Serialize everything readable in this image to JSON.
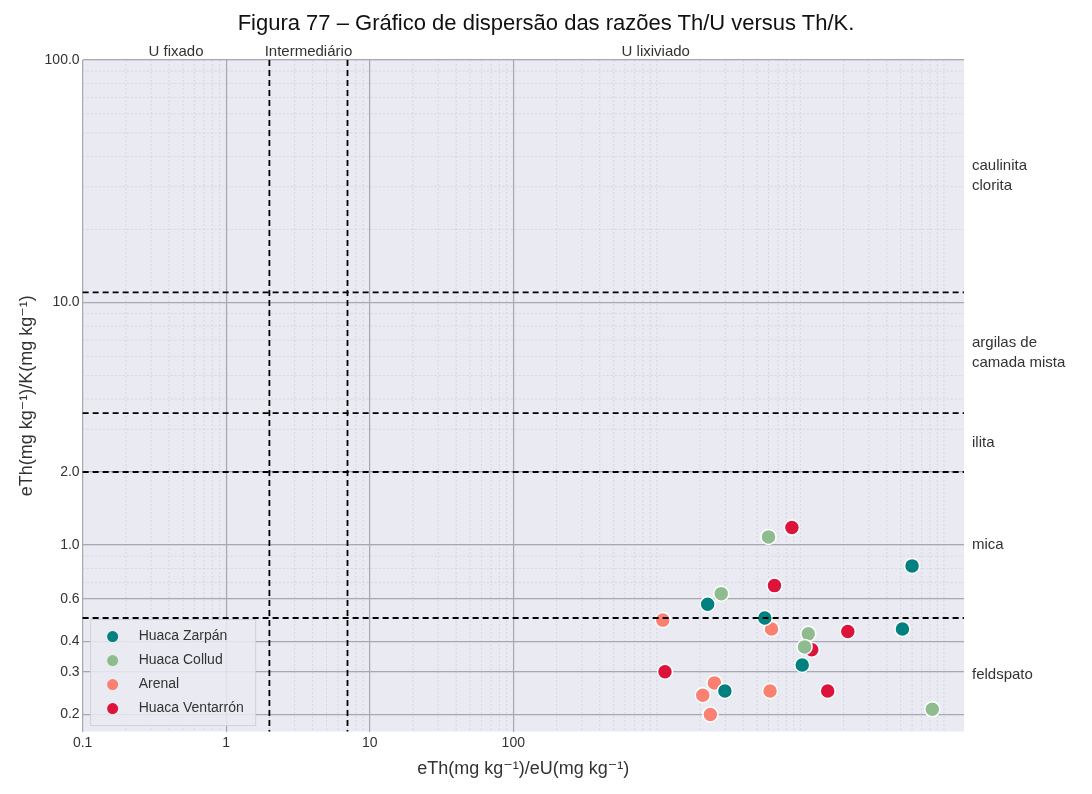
{
  "chart_data": {
    "type": "scatter",
    "title": "Figura 77 – Gráfico de dispersão das razões Th/U versus Th/K.",
    "xlabel": "eTh(mg kg⁻¹)/eU(mg kg⁻¹)",
    "ylabel": "eTh(mg kg⁻¹)/K(mg kg⁻¹)",
    "log": "xy",
    "grid": true,
    "legend": "bottom left",
    "marker": "circle",
    "xlim": [
      0.1,
      138000
    ],
    "xticks": [
      0.1,
      1,
      10,
      100
    ],
    "ylim": [
      0.17,
      100
    ],
    "yticks": [
      {
        "value": 0.2,
        "label": "0.2"
      },
      {
        "value": 0.3,
        "label": "0.3"
      },
      {
        "value": 0.4,
        "label": "0.4"
      },
      {
        "value": 0.6,
        "label": "0.6"
      },
      {
        "value": 1,
        "label": "1.0"
      },
      {
        "value": 2,
        "label": "2.0"
      },
      {
        "value": 10,
        "label": "10.0"
      },
      {
        "value": 100,
        "label": "100.0"
      }
    ],
    "series": [
      {
        "name": "Huaca Zarpán",
        "color": "#008080",
        "x": [
          60000,
          2260,
          5650,
          51400,
          10300,
          2980
        ],
        "values": [
          0.82,
          0.57,
          0.5,
          0.45,
          0.32,
          0.25
        ]
      },
      {
        "name": "Huaca Collud",
        "color": "#8fbc8f",
        "x": [
          6000,
          2810,
          11350,
          10700,
          83000
        ],
        "values": [
          1.08,
          0.63,
          0.43,
          0.38,
          0.21
        ]
      },
      {
        "name": "Arenal",
        "color": "#fa8072",
        "x": [
          1100,
          6300,
          2520,
          2090,
          2360,
          6150
        ],
        "values": [
          0.49,
          0.45,
          0.27,
          0.24,
          0.2,
          0.25
        ]
      },
      {
        "name": "Huaca Ventarrón",
        "color": "#dc143c",
        "x": [
          8730,
          6600,
          21400,
          12000,
          1140,
          15500
        ],
        "values": [
          1.18,
          0.68,
          0.44,
          0.37,
          0.3,
          0.25
        ]
      }
    ],
    "ref_lines": [
      {
        "axis": "y",
        "value": 11,
        "color": "#000000",
        "line_style": "dashed"
      },
      {
        "axis": "y",
        "value": 3.5,
        "color": "#000000",
        "line_style": "dashed"
      },
      {
        "axis": "y",
        "value": 2,
        "color": "#000000",
        "line_style": "dashed"
      },
      {
        "axis": "y",
        "value": 0.5,
        "color": "#000000",
        "line_style": "dashed"
      },
      {
        "axis": "x",
        "value": 2,
        "color": "#000000",
        "line_style": "dashed"
      },
      {
        "axis": "x",
        "value": 7,
        "color": "#000000",
        "line_style": "dashed"
      }
    ],
    "annotations": [
      "U fixado",
      "Intermediário",
      "U lixiviado",
      "caulinita\nclorita",
      "argilas de\ncamada mista",
      "ilita",
      "mica",
      "feldspato"
    ]
  }
}
